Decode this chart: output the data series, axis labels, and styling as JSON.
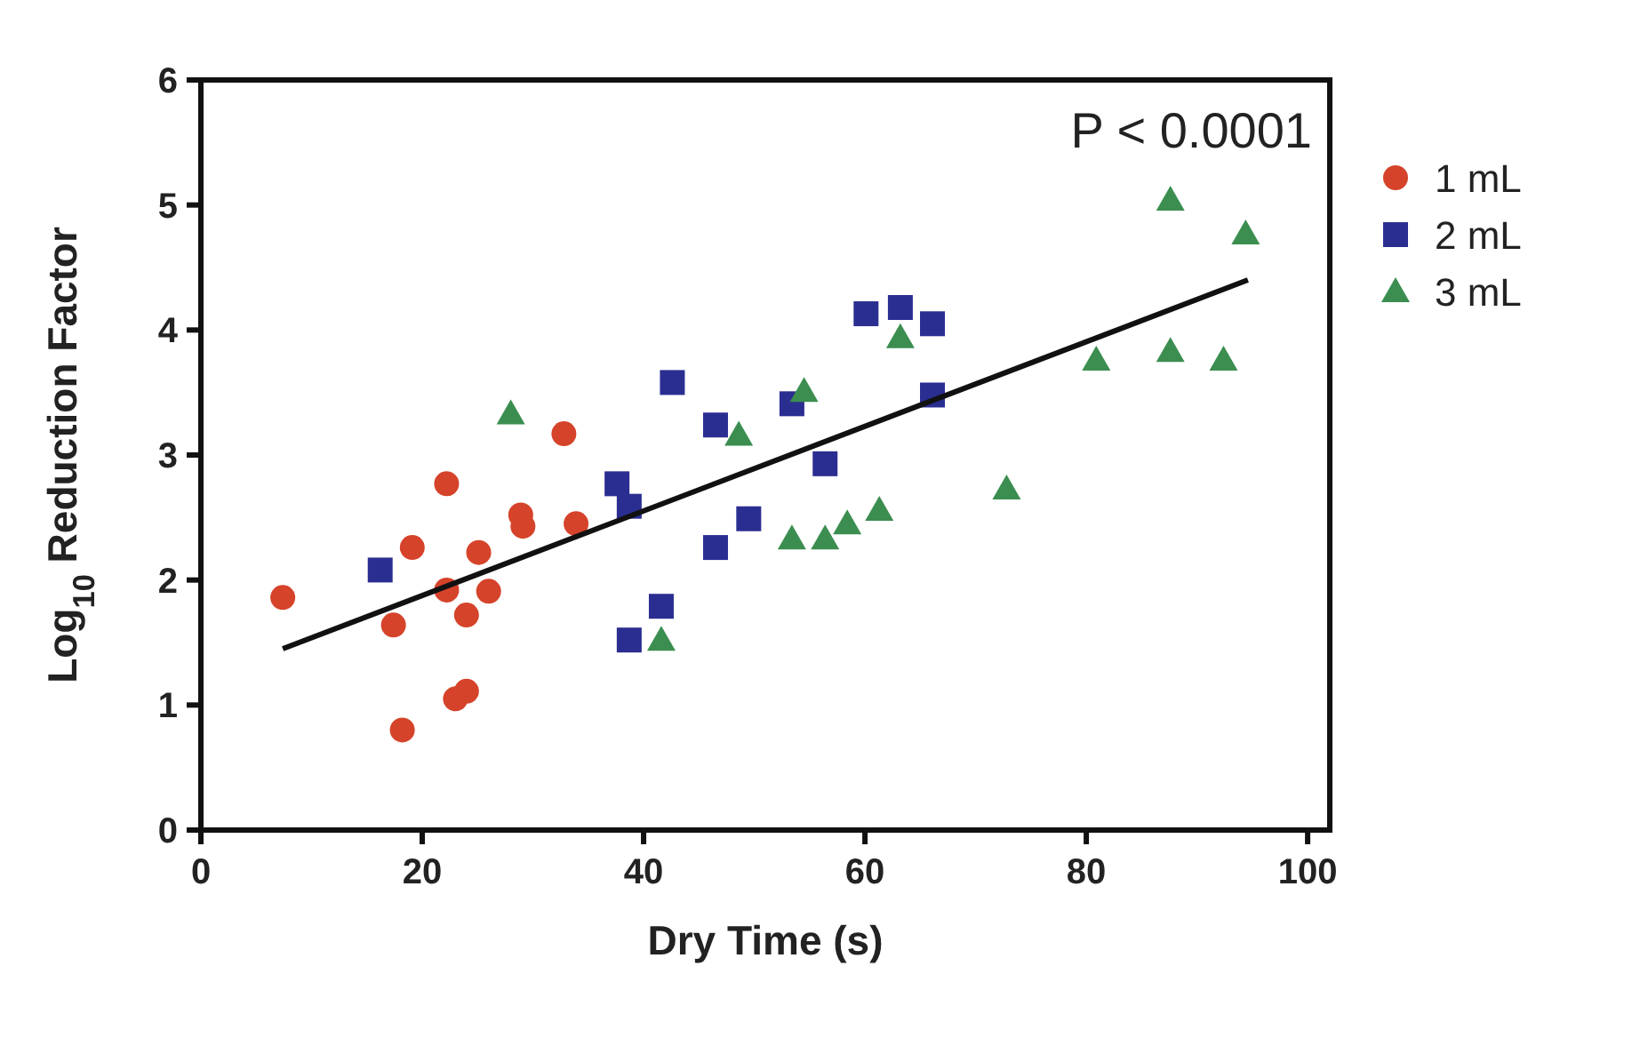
{
  "chart_data": {
    "type": "scatter",
    "xlabel": "Dry Time (s)",
    "ylabel": "Log$_{10}$ Reduction Factor",
    "xlim": [
      0,
      102
    ],
    "ylim": [
      0,
      6
    ],
    "xticks": [
      0,
      20,
      40,
      60,
      80,
      100
    ],
    "yticks": [
      0,
      1,
      2,
      3,
      4,
      5,
      6
    ],
    "grid": false,
    "legend": "right",
    "annotations": [
      "P < 0.0001"
    ],
    "series": [
      {
        "name": "1 mL",
        "color": "#d5432a",
        "marker": "circle",
        "x": [
          7.4,
          17.4,
          18.2,
          19.1,
          22.2,
          22.2,
          23,
          24,
          24,
          25.1,
          26,
          28.9,
          29.1,
          32.8,
          33.9
        ],
        "values": [
          1.86,
          1.64,
          0.8,
          2.26,
          2.77,
          1.92,
          1.05,
          1.11,
          1.72,
          2.22,
          1.91,
          2.52,
          2.43,
          3.17,
          2.45
        ]
      },
      {
        "name": "2 mL",
        "color": "#2b2e91",
        "marker": "square",
        "x": [
          16.2,
          37.6,
          38.7,
          38.7,
          41.6,
          42.6,
          46.5,
          46.5,
          49.5,
          53.4,
          56.4,
          60.1,
          63.2,
          66.1,
          66.1
        ],
        "values": [
          2.08,
          2.77,
          2.59,
          1.52,
          1.79,
          3.58,
          3.24,
          2.26,
          2.49,
          3.41,
          2.93,
          4.13,
          4.18,
          4.05,
          3.48
        ]
      },
      {
        "name": "3 mL",
        "color": "#3b8e50",
        "marker": "triangle",
        "x": [
          28,
          41.6,
          48.6,
          53.4,
          54.5,
          56.4,
          58.4,
          61.3,
          63.2,
          72.8,
          80.9,
          87.6,
          92.4,
          87.6,
          94.4
        ],
        "values": [
          3.33,
          1.52,
          3.16,
          2.33,
          3.51,
          2.33,
          2.45,
          2.56,
          3.94,
          2.73,
          3.76,
          3.83,
          3.76,
          5.04,
          4.77
        ]
      },
      {
        "type": "line",
        "color": "#111111",
        "marker": "none",
        "line_style": "solid",
        "x": [
          7.4,
          94.6
        ],
        "values": [
          1.45,
          4.4
        ]
      }
    ]
  }
}
